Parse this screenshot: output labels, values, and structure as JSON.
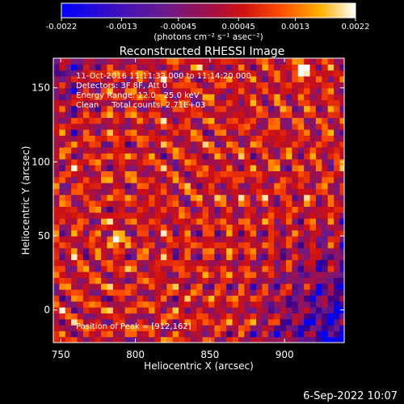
{
  "colorbar": {
    "tick_labels": [
      "-0.0022",
      "-0.0013",
      "-0.00045",
      "0.00045",
      "0.0013",
      "0.0022"
    ],
    "tick_values": [
      -0.0022,
      -0.0013,
      -0.00045,
      0.00045,
      0.0013,
      0.0022
    ],
    "range": [
      -0.0022,
      0.0022
    ],
    "unit_label": "(photons cm⁻² s⁻¹ asec⁻²)"
  },
  "chart_data": {
    "type": "heatmap",
    "title": "Reconstructed RHESSI Image",
    "xlabel": "Heliocentric X (arcsec)",
    "ylabel": "Heliocentric Y (arcsec)",
    "xlim": [
      745,
      940
    ],
    "ylim": [
      -22,
      170
    ],
    "x_ticks": [
      750,
      800,
      850,
      900
    ],
    "y_ticks": [
      0,
      50,
      100,
      150
    ],
    "x_tick_labels": [
      "750",
      "800",
      "850",
      "900"
    ],
    "y_tick_labels": [
      "0",
      "50",
      "100",
      "150"
    ],
    "colormap": [
      "#0000ff",
      "#400080",
      "#6a1a8c",
      "#a0104a",
      "#d01010",
      "#ff5000",
      "#ffb000",
      "#ffffff"
    ],
    "peak": {
      "x": 912,
      "y": 162
    },
    "annotations": [
      "11-Oct-2016 11:11:32.000 to 11:14:20.000",
      "Detectors: 3F 8F, Att 0",
      "Energy Range: 12.0 - 25.0 keV",
      "Clean     Total counts: 2.71E+03"
    ],
    "peak_label": "Position of Peak = [912,162]"
  },
  "footer": {
    "date": "6-Sep-2022 10:07"
  }
}
